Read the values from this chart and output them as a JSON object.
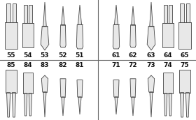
{
  "top_left_labels": [
    "55",
    "54",
    "53",
    "52",
    "51"
  ],
  "top_right_labels": [
    "61",
    "62",
    "63",
    "64",
    "65"
  ],
  "bot_left_labels": [
    "85",
    "84",
    "83",
    "82",
    "81"
  ],
  "bot_right_labels": [
    "71",
    "72",
    "73",
    "74",
    "75"
  ],
  "label_color": "#111111",
  "tooth_fill": "#e8e8e8",
  "tooth_edge": "#444444",
  "divider_color": "#666666",
  "label_fontsize": 6.5,
  "label_fontweight": "bold"
}
